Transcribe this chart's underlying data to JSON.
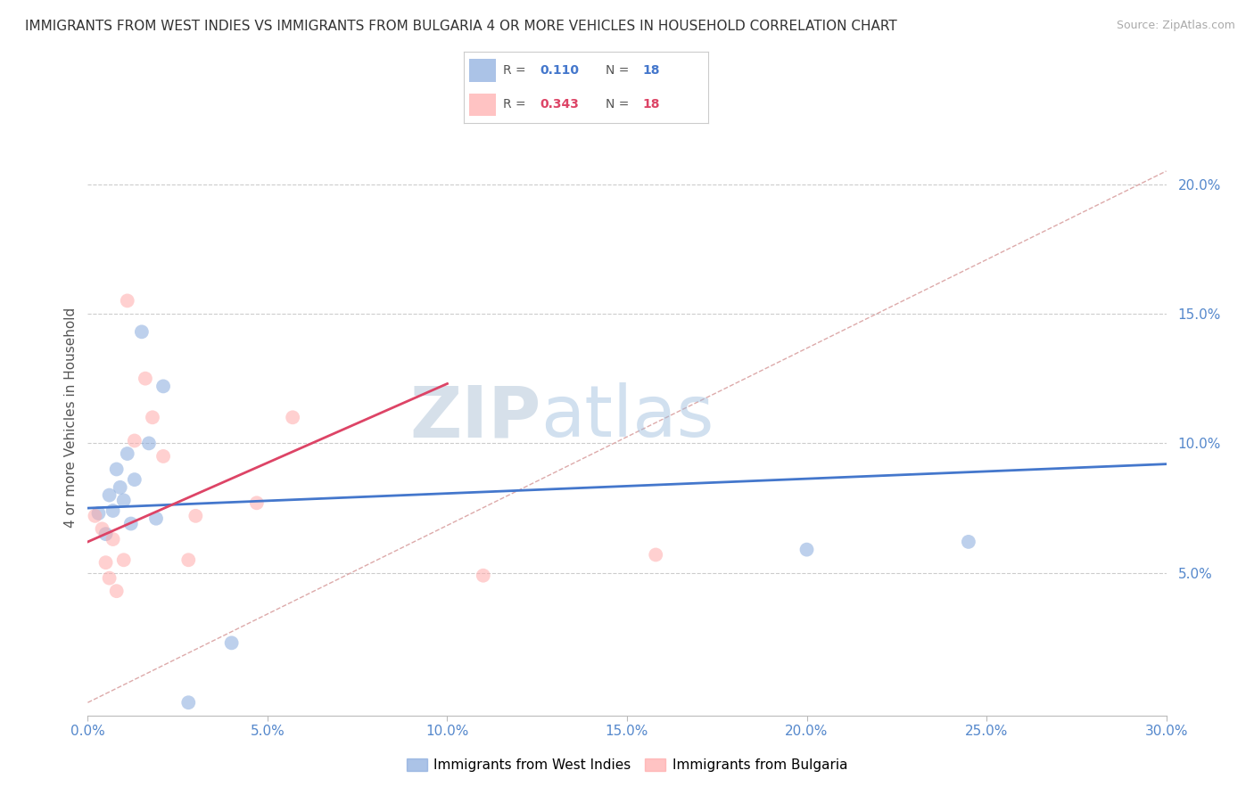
{
  "title": "IMMIGRANTS FROM WEST INDIES VS IMMIGRANTS FROM BULGARIA 4 OR MORE VEHICLES IN HOUSEHOLD CORRELATION CHART",
  "source": "Source: ZipAtlas.com",
  "ylabel": "4 or more Vehicles in Household",
  "legend_blue_label": "Immigrants from West Indies",
  "legend_pink_label": "Immigrants from Bulgaria",
  "R_blue": 0.11,
  "N_blue": 18,
  "R_pink": 0.343,
  "N_pink": 18,
  "xlim": [
    0.0,
    0.3
  ],
  "ylim": [
    -0.005,
    0.225
  ],
  "xticks": [
    0.0,
    0.05,
    0.1,
    0.15,
    0.2,
    0.25,
    0.3
  ],
  "yticks": [
    0.05,
    0.1,
    0.15,
    0.2
  ],
  "ytick_labels": [
    "5.0%",
    "10.0%",
    "15.0%",
    "20.0%"
  ],
  "xtick_labels": [
    "0.0%",
    "5.0%",
    "10.0%",
    "15.0%",
    "20.0%",
    "25.0%",
    "30.0%"
  ],
  "color_blue": "#88AADD",
  "color_pink": "#FFAAAA",
  "color_blue_line": "#4477CC",
  "color_pink_line": "#DD4466",
  "watermark_zip": "ZIP",
  "watermark_atlas": "atlas",
  "watermark_color_zip": "#BBCCDD",
  "watermark_color_atlas": "#99BBDD",
  "blue_x": [
    0.003,
    0.005,
    0.006,
    0.007,
    0.008,
    0.009,
    0.01,
    0.011,
    0.012,
    0.013,
    0.015,
    0.017,
    0.019,
    0.021,
    0.028,
    0.04,
    0.2,
    0.245
  ],
  "blue_y": [
    0.073,
    0.065,
    0.08,
    0.074,
    0.09,
    0.083,
    0.078,
    0.096,
    0.069,
    0.086,
    0.143,
    0.1,
    0.071,
    0.122,
    0.0,
    0.023,
    0.059,
    0.062
  ],
  "pink_x": [
    0.002,
    0.004,
    0.005,
    0.006,
    0.007,
    0.008,
    0.01,
    0.011,
    0.013,
    0.016,
    0.018,
    0.021,
    0.03,
    0.047,
    0.057,
    0.11,
    0.158,
    0.028
  ],
  "pink_y": [
    0.072,
    0.067,
    0.054,
    0.048,
    0.063,
    0.043,
    0.055,
    0.155,
    0.101,
    0.125,
    0.11,
    0.095,
    0.072,
    0.077,
    0.11,
    0.049,
    0.057,
    0.055
  ],
  "blue_line_x": [
    0.0,
    0.3
  ],
  "blue_line_y": [
    0.075,
    0.092
  ],
  "pink_line_x": [
    0.0,
    0.1
  ],
  "pink_line_y": [
    0.062,
    0.123
  ],
  "diag_line_x": [
    0.0,
    0.3
  ],
  "diag_line_y": [
    0.0,
    0.205
  ],
  "background_color": "#FFFFFF",
  "grid_color": "#CCCCCC",
  "diag_color": "#DDAAAA",
  "title_fontsize": 11,
  "tick_fontsize": 11,
  "tick_color": "#5588CC"
}
